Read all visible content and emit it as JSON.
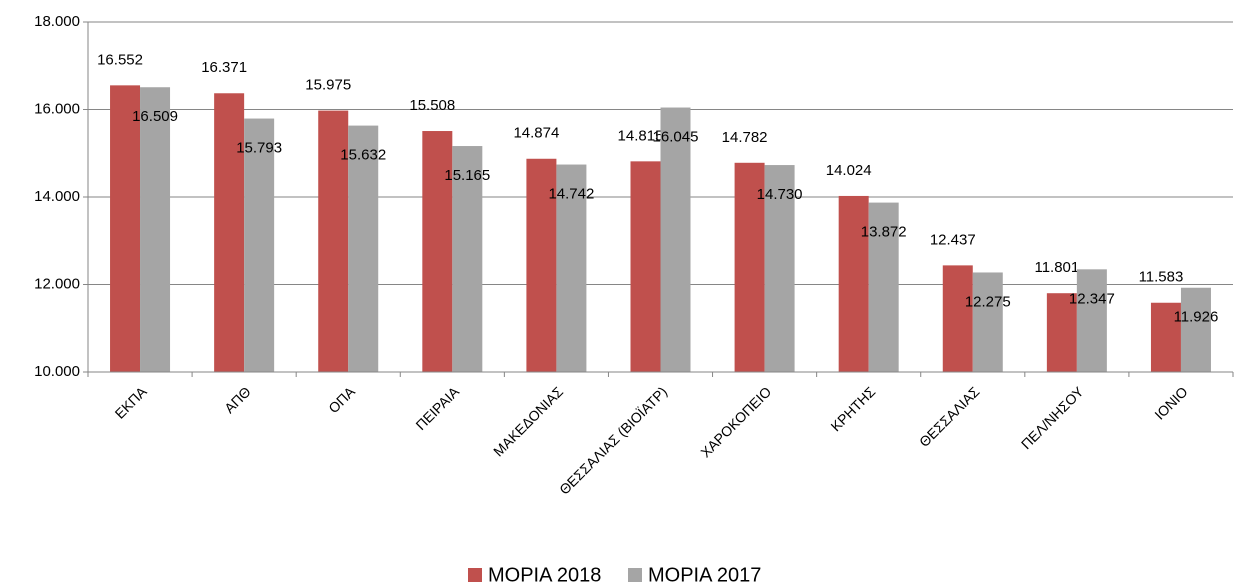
{
  "chart_data": {
    "type": "bar",
    "categories": [
      "ΕΚΠΑ",
      "ΑΠΘ",
      "ΟΠΑ",
      "ΠΕΙΡΑΙΑ",
      "ΜΑΚΕΔΟΝΙΑΣ",
      "ΘΕΣΣΑΛΙΑΣ (ΒΙΟΪΑΤΡ)",
      "ΧΑΡΟΚΟΠΕΙΟ",
      "ΚΡΗΤΗΣ",
      "ΘΕΣΣΑΛΙΑΣ",
      "ΠΕΛ/ΝΗΣΟΥ",
      "ΙΟΝΙΟ"
    ],
    "series": [
      {
        "name": "ΜΟΡΙΑ 2018",
        "color": "#c0504d",
        "values": [
          16552,
          16371,
          15975,
          15508,
          14874,
          14815,
          14782,
          14024,
          12437,
          11801,
          11583
        ],
        "value_labels": [
          "16.552",
          "16.371",
          "15.975",
          "15.508",
          "14.874",
          "14.815",
          "14.782",
          "14.024",
          "12.437",
          "11.801",
          "11.583"
        ]
      },
      {
        "name": "ΜΟΡΙΑ 2017",
        "color": "#a5a5a5",
        "values": [
          16509,
          15793,
          15632,
          15165,
          14742,
          16045,
          14730,
          13872,
          12275,
          12347,
          11926
        ],
        "value_labels": [
          "16.509",
          "15.793",
          "15.632",
          "15.165",
          "14.742",
          "16.045",
          "14.730",
          "13.872",
          "12.275",
          "12.347",
          "11.926"
        ]
      }
    ],
    "ylim": [
      10000,
      18000
    ],
    "yticks": [
      {
        "value": 10000,
        "label": "10.000"
      },
      {
        "value": 12000,
        "label": "12.000"
      },
      {
        "value": 14000,
        "label": "14.000"
      },
      {
        "value": 16000,
        "label": "16.000"
      },
      {
        "value": 18000,
        "label": "18.000"
      }
    ],
    "grid": true,
    "legend": "bottom"
  }
}
